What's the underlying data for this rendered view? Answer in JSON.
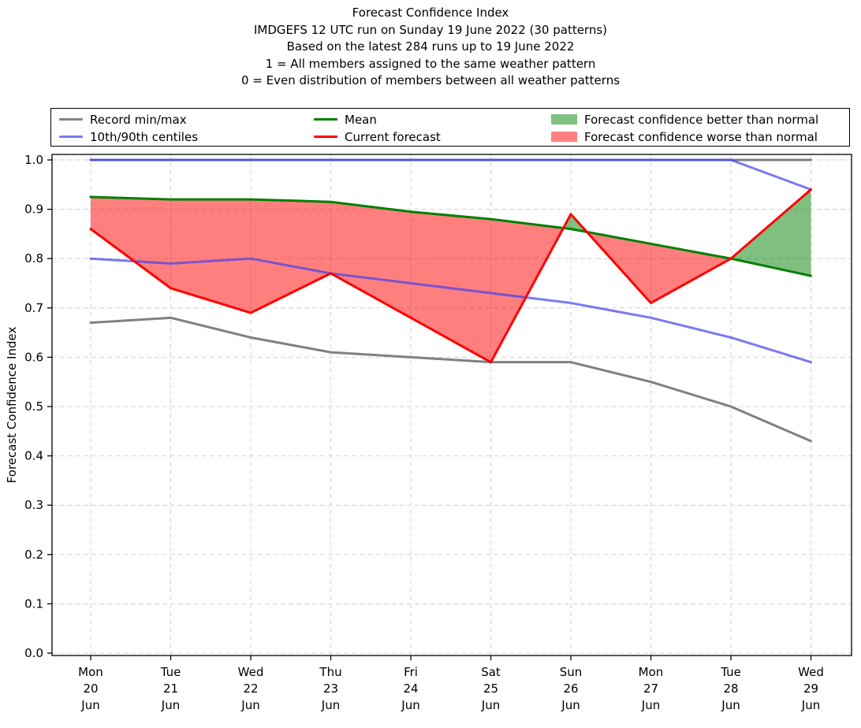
{
  "header": {
    "lines": [
      "Forecast Confidence Index",
      "IMDGEFS 12 UTC run on Sunday 19 June 2022 (30 patterns)",
      "Based on the latest 284 runs up to 19 June 2022",
      "1 = All members assigned to the same weather pattern",
      "0 = Even distribution of members between all weather patterns"
    ]
  },
  "legend": {
    "columns": [
      [
        {
          "label": "Record min/max",
          "swatch": "line",
          "color": "#858585"
        },
        {
          "label": "10th/90th centiles",
          "swatch": "line",
          "color": "#7979f4"
        }
      ],
      [
        {
          "label": "Mean",
          "swatch": "line",
          "color": "#008000"
        },
        {
          "label": "Current forecast",
          "swatch": "line",
          "color": "#ff0000"
        }
      ],
      [
        {
          "label": "Forecast confidence better than normal",
          "swatch": "patch",
          "color": "#80c080"
        },
        {
          "label": "Forecast confidence worse than normal",
          "swatch": "patch",
          "color": "#ff8080"
        }
      ]
    ]
  },
  "chart_data": {
    "type": "line",
    "title": "Forecast Confidence Index",
    "subtitle": "IMDGEFS 12 UTC run on Sunday 19 June 2022 (30 patterns)",
    "ylabel": "Forecast Confidence Index",
    "xlabel": "",
    "ylim": [
      0.0,
      1.0
    ],
    "ytick_step": 0.1,
    "grid": true,
    "legend_position": "top",
    "categories": [
      {
        "dow": "Mon",
        "day": "20",
        "mon": "Jun"
      },
      {
        "dow": "Tue",
        "day": "21",
        "mon": "Jun"
      },
      {
        "dow": "Wed",
        "day": "22",
        "mon": "Jun"
      },
      {
        "dow": "Thu",
        "day": "23",
        "mon": "Jun"
      },
      {
        "dow": "Fri",
        "day": "24",
        "mon": "Jun"
      },
      {
        "dow": "Sat",
        "day": "25",
        "mon": "Jun"
      },
      {
        "dow": "Sun",
        "day": "26",
        "mon": "Jun"
      },
      {
        "dow": "Mon",
        "day": "27",
        "mon": "Jun"
      },
      {
        "dow": "Tue",
        "day": "28",
        "mon": "Jun"
      },
      {
        "dow": "Wed",
        "day": "29",
        "mon": "Jun"
      }
    ],
    "series": [
      {
        "key": "record_max",
        "name": "Record max",
        "color": "#808080",
        "alpha": 1,
        "values": [
          1.0,
          1.0,
          1.0,
          1.0,
          1.0,
          1.0,
          1.0,
          1.0,
          1.0,
          1.0
        ]
      },
      {
        "key": "record_min",
        "name": "Record min",
        "color": "#808080",
        "alpha": 1,
        "values": [
          0.67,
          0.68,
          0.64,
          0.61,
          0.6,
          0.59,
          0.59,
          0.55,
          0.5,
          0.43
        ]
      },
      {
        "key": "centile_90",
        "name": "90th centile",
        "color": "rgba(64,64,240,0.7)",
        "alpha": 0.7,
        "values": [
          1.0,
          1.0,
          1.0,
          1.0,
          1.0,
          1.0,
          1.0,
          1.0,
          1.0,
          0.94
        ]
      },
      {
        "key": "centile_10",
        "name": "10th centile",
        "color": "rgba(64,64,240,0.7)",
        "alpha": 0.7,
        "values": [
          0.8,
          0.79,
          0.8,
          0.77,
          0.75,
          0.73,
          0.71,
          0.68,
          0.64,
          0.59
        ]
      },
      {
        "key": "mean",
        "name": "Mean",
        "color": "#008000",
        "alpha": 1,
        "values": [
          0.925,
          0.92,
          0.92,
          0.915,
          0.895,
          0.88,
          0.86,
          0.83,
          0.8,
          0.765
        ]
      },
      {
        "key": "forecast",
        "name": "Current forecast",
        "color": "#ff0000",
        "alpha": 1,
        "values": [
          0.86,
          0.74,
          0.69,
          0.77,
          0.68,
          0.59,
          0.89,
          0.71,
          0.8,
          0.94
        ]
      }
    ],
    "fills": {
      "better_than_normal_color": "rgba(0,128,0,0.5)",
      "worse_than_normal_color": "rgba(255,0,0,0.5)",
      "between": [
        "forecast",
        "mean"
      ]
    }
  }
}
